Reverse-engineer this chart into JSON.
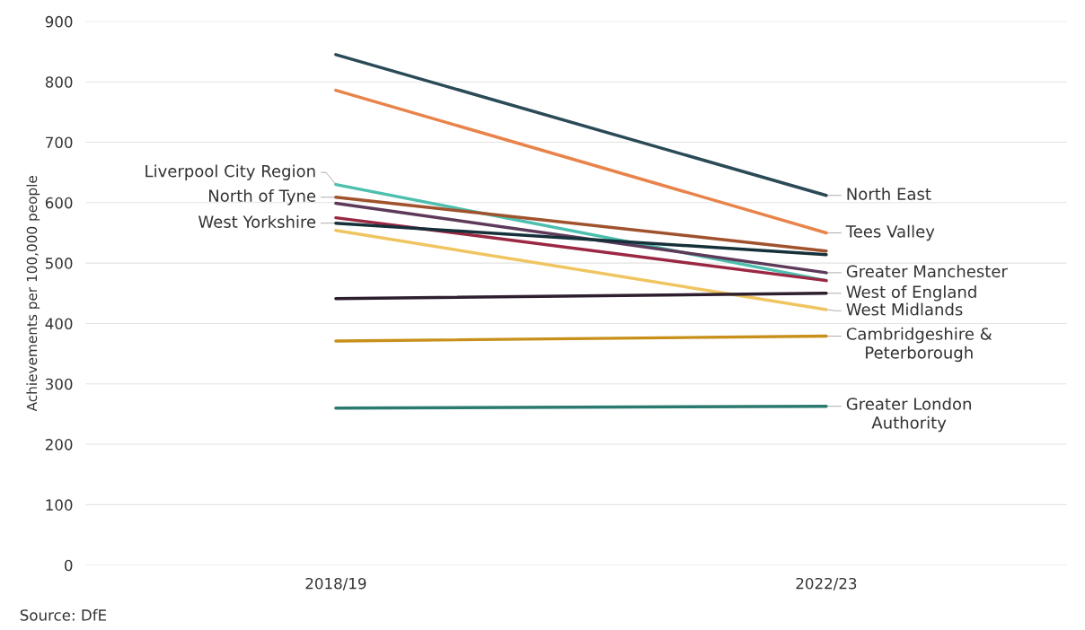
{
  "chart_data": {
    "type": "line",
    "ylabel": "Achievements per 100,000 people",
    "categories": [
      "2018/19",
      "2022/23"
    ],
    "series": [
      {
        "color": "#2b4a57",
        "values": [
          845,
          612
        ]
      },
      {
        "color": "#e8834a",
        "values": [
          786,
          550
        ]
      },
      {
        "color": "#4dbfae",
        "values": [
          630,
          471
        ]
      },
      {
        "color": "#a0522d",
        "values": [
          609,
          520
        ]
      },
      {
        "color": "#5e3a5a",
        "values": [
          599,
          484
        ]
      },
      {
        "color": "#9b2743",
        "values": [
          575,
          471
        ]
      },
      {
        "color": "#16303a",
        "values": [
          566,
          514
        ]
      },
      {
        "color": "#f0c561",
        "values": [
          554,
          423
        ]
      },
      {
        "color": "#2e1f2e",
        "values": [
          441,
          450
        ]
      },
      {
        "color": "#c8901a",
        "values": [
          371,
          379
        ]
      },
      {
        "color": "#2a7a6f",
        "values": [
          260,
          263
        ]
      }
    ],
    "ylim": [
      0,
      900
    ],
    "yticks": [
      0,
      100,
      200,
      300,
      400,
      500,
      600,
      700,
      800,
      900
    ],
    "grid": "y",
    "marker": "none",
    "line_style": "solid",
    "annotations": [
      {
        "text": "Liverpool City Region",
        "x": "2018/19",
        "y": 630
      },
      {
        "text": "North of Tyne",
        "x": "2018/19",
        "y": 609
      },
      {
        "text": "West Yorkshire",
        "x": "2018/19",
        "y": 566
      },
      {
        "text": "North East",
        "x": "2022/23",
        "y": 612
      },
      {
        "text": "Tees Valley",
        "x": "2022/23",
        "y": 550
      },
      {
        "text": "Greater Manchester",
        "x": "2022/23",
        "y": 484
      },
      {
        "text": "West of England",
        "x": "2022/23",
        "y": 450
      },
      {
        "text": "West Midlands",
        "x": "2022/23",
        "y": 423
      },
      {
        "text": "Cambridgeshire &\nPeterborough",
        "x": "2022/23",
        "y": 379
      },
      {
        "text": "Greater London\nAuthority",
        "x": "2022/23",
        "y": 263
      },
      "Source: DfE"
    ]
  }
}
